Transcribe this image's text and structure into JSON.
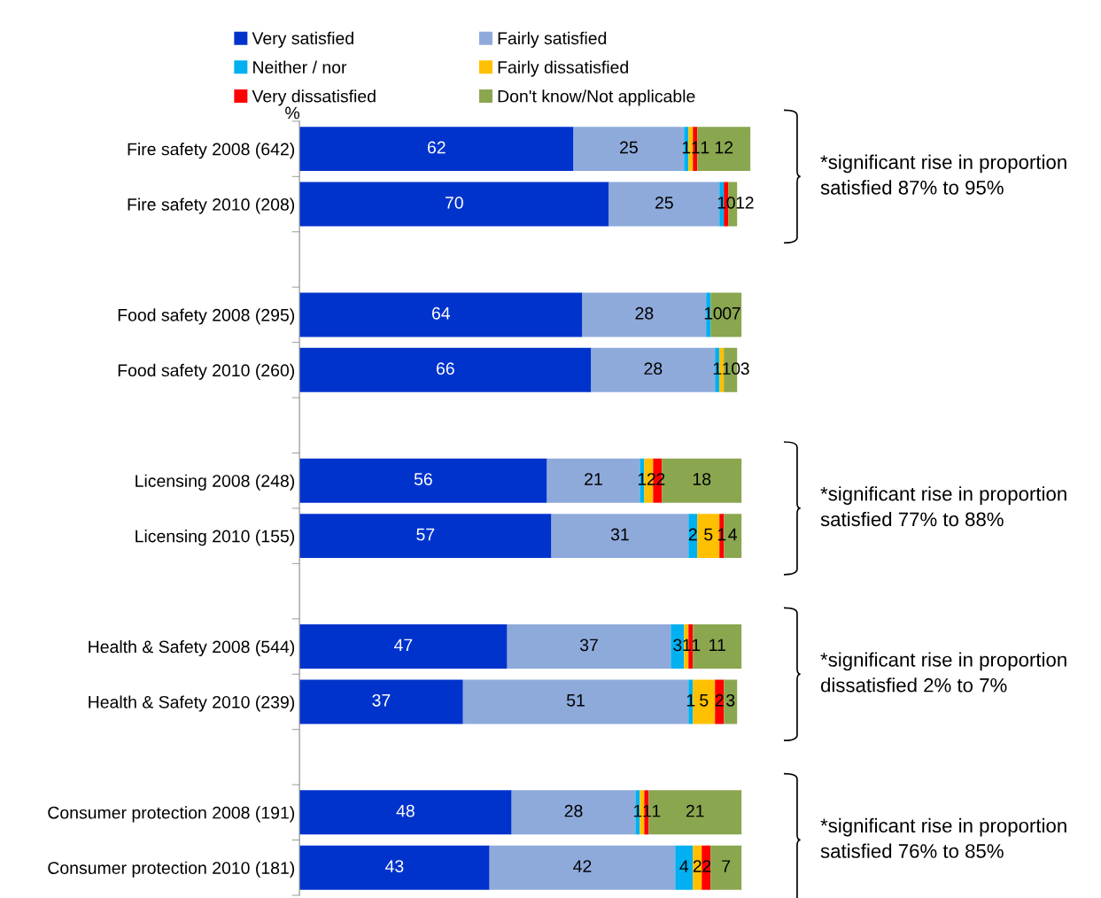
{
  "chart_data": {
    "type": "bar",
    "orientation": "horizontal",
    "stacked": true,
    "data_labels": true,
    "legend": "top",
    "grid": false,
    "tick_labels": "y",
    "categories": [
      "Fire safety 2008 (642)",
      "Fire safety 2010 (208)",
      null,
      "Food safety 2008 (295)",
      "Food safety 2010 (260)",
      null,
      "Licensing 2008 (248)",
      "Licensing 2010 (155)",
      null,
      "Health & Safety 2008 (544)",
      "Health & Safety 2010 (239)",
      null,
      "Consumer protection 2008 (191)",
      "Consumer protection 2010 (181)"
    ],
    "series": [
      {
        "name": "Very satisfied",
        "color": "#0033cc",
        "values": [
          62,
          70,
          null,
          64,
          66,
          null,
          56,
          57,
          null,
          47,
          37,
          null,
          48,
          43
        ]
      },
      {
        "name": "Fairly satisfied",
        "color": "#8eaadb",
        "values": [
          25,
          25,
          null,
          28,
          28,
          null,
          21,
          31,
          null,
          37,
          51,
          null,
          28,
          42
        ]
      },
      {
        "name": "Neither / nor",
        "color": "#00b0f0",
        "values": [
          1,
          1,
          null,
          1,
          1,
          null,
          1,
          2,
          null,
          3,
          1,
          null,
          1,
          4
        ]
      },
      {
        "name": "Fairly dissatisfied",
        "color": "#ffc000",
        "values": [
          1,
          0,
          null,
          0,
          1,
          null,
          2,
          5,
          null,
          1,
          5,
          null,
          1,
          2
        ]
      },
      {
        "name": "Very dissatisfied",
        "color": "#ff0000",
        "values": [
          1,
          1,
          null,
          0,
          0,
          null,
          2,
          1,
          null,
          1,
          2,
          null,
          1,
          2
        ]
      },
      {
        "name": "Don't know/Not applicable",
        "color": "#8aa64f",
        "values": [
          12,
          2,
          null,
          7,
          3,
          null,
          18,
          4,
          null,
          11,
          3,
          null,
          21,
          7
        ]
      }
    ],
    "annotations": [
      "%",
      "*significant rise in proportion satisfied 87% to 95%",
      "*significant rise in proportion satisfied 77% to 88%",
      "*significant rise in proportion dissatisfied 2% to 7%",
      "*significant rise in proportion satisfied 76% to 85%"
    ]
  }
}
